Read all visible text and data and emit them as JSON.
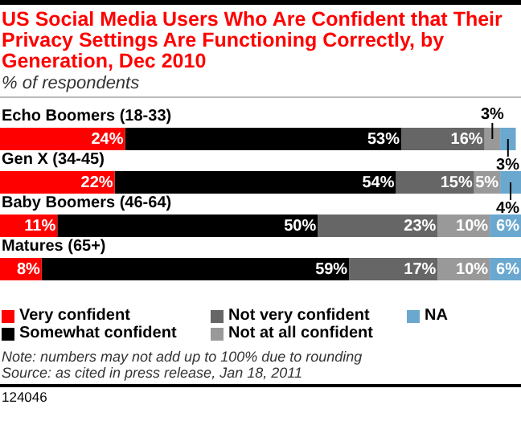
{
  "chart_data": {
    "type": "bar",
    "orientation": "horizontal",
    "stacked": true,
    "legend": "bottom",
    "title": "US Social Media Users Who Are Confident that Their Privacy Settings Are Functioning Correctly, by Generation, Dec 2010",
    "subtitle": "% of respondents",
    "categories": [
      "Echo Boomers (18-33)",
      "Gen X (34-45)",
      "Baby Boomers (46-64)",
      "Matures (65+)"
    ],
    "series": [
      {
        "name": "Very confident",
        "color": "#ff0000",
        "values": [
          24,
          22,
          11,
          8
        ],
        "value_labels": [
          "24%",
          "22%",
          "11%",
          "8%"
        ]
      },
      {
        "name": "Somewhat confident",
        "color": "#000000",
        "values": [
          53,
          54,
          50,
          59
        ],
        "value_labels": [
          "53%",
          "54%",
          "50%",
          "59%"
        ]
      },
      {
        "name": "Not very confident",
        "color": "#666666",
        "values": [
          16,
          15,
          23,
          17
        ],
        "value_labels": [
          "16%",
          "15%",
          "23%",
          "17%"
        ]
      },
      {
        "name": "Not at all confident",
        "color": "#999999",
        "values": [
          3,
          5,
          10,
          10
        ],
        "value_labels": [
          "3%",
          "5%",
          "10%",
          "10%"
        ]
      },
      {
        "name": "NA",
        "color": "#6aa8cf",
        "values": [
          3,
          4,
          6,
          6
        ],
        "value_labels": [
          "3%",
          "4%",
          "6%",
          "6%"
        ]
      }
    ],
    "annotations": [
      "Note: numbers may not add up to 100% due to rounding",
      "Source: as cited in press release, Jan 18, 2011",
      "124046"
    ]
  }
}
